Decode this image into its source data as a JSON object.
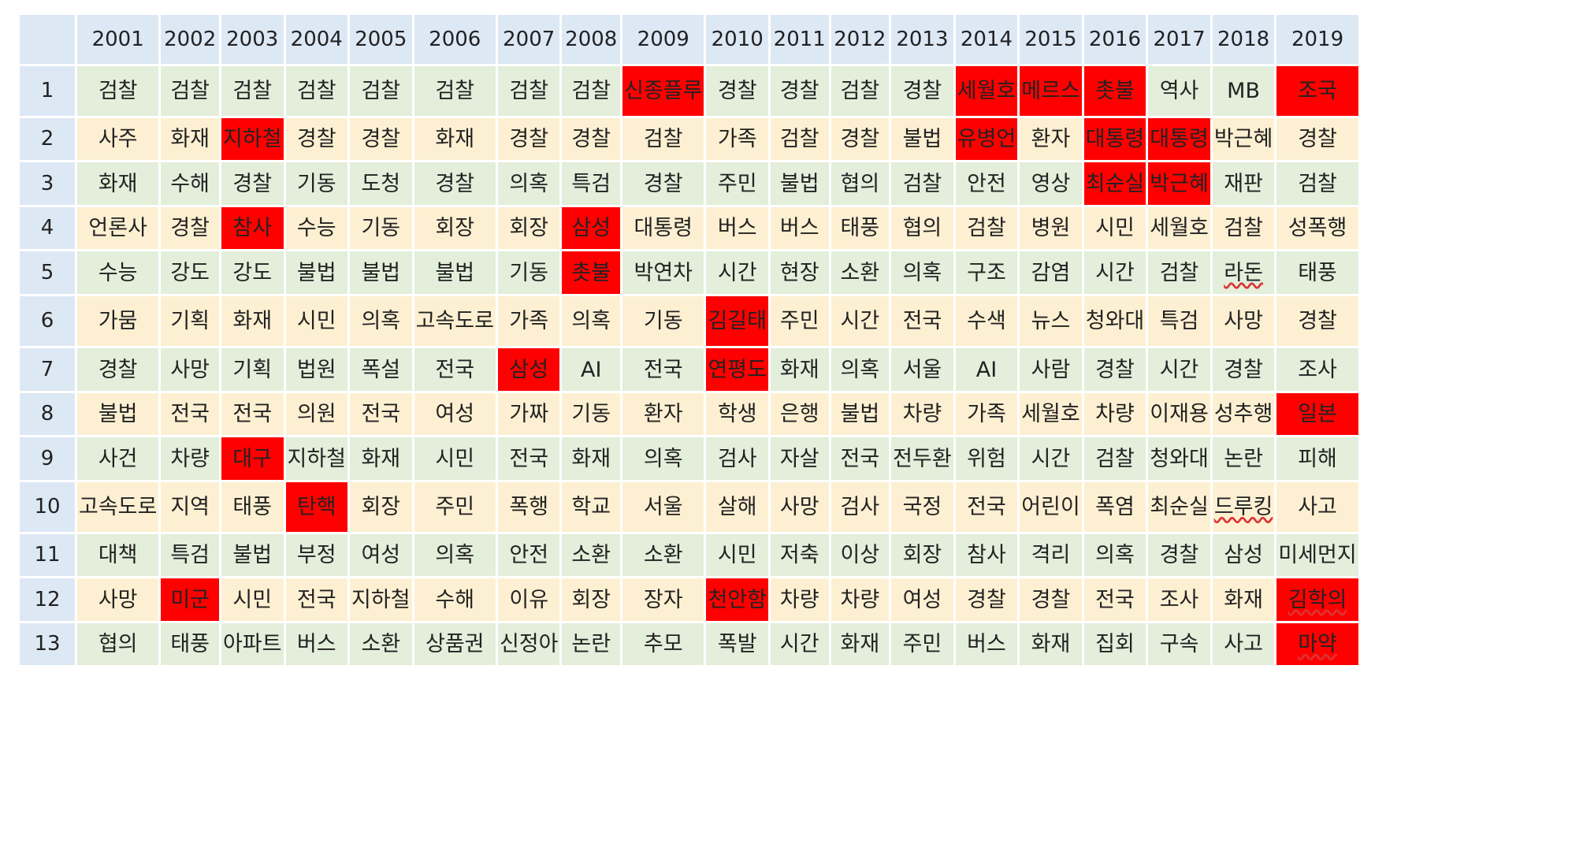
{
  "table": {
    "years": [
      "2001",
      "2002",
      "2003",
      "2004",
      "2005",
      "2006",
      "2007",
      "2008",
      "2009",
      "2010",
      "2011",
      "2012",
      "2013",
      "2014",
      "2015",
      "2016",
      "2017",
      "2018",
      "2019"
    ],
    "rows": [
      {
        "rank": "1",
        "cells": [
          {
            "text": "검찰"
          },
          {
            "text": "검찰"
          },
          {
            "text": "검찰"
          },
          {
            "text": "검찰"
          },
          {
            "text": "검찰"
          },
          {
            "text": "검찰"
          },
          {
            "text": "검찰"
          },
          {
            "text": "검찰"
          },
          {
            "text": "신종플루",
            "highlight": true
          },
          {
            "text": "경찰"
          },
          {
            "text": "경찰"
          },
          {
            "text": "검찰"
          },
          {
            "text": "경찰"
          },
          {
            "text": "세월호",
            "highlight": true
          },
          {
            "text": "메르스",
            "highlight": true
          },
          {
            "text": "촛불",
            "highlight": true
          },
          {
            "text": "역사"
          },
          {
            "text": "MB"
          },
          {
            "text": "조국",
            "highlight": true
          }
        ]
      },
      {
        "rank": "2",
        "cells": [
          {
            "text": "사주"
          },
          {
            "text": "화재"
          },
          {
            "text": "지하철",
            "highlight": true
          },
          {
            "text": "경찰"
          },
          {
            "text": "경찰"
          },
          {
            "text": "화재"
          },
          {
            "text": "경찰"
          },
          {
            "text": "경찰"
          },
          {
            "text": "검찰"
          },
          {
            "text": "가족"
          },
          {
            "text": "검찰"
          },
          {
            "text": "경찰"
          },
          {
            "text": "불법"
          },
          {
            "text": "유병언",
            "highlight": true
          },
          {
            "text": "환자"
          },
          {
            "text": "대통령",
            "highlight": true
          },
          {
            "text": "대통령",
            "highlight": true
          },
          {
            "text": "박근혜"
          },
          {
            "text": "경찰"
          }
        ]
      },
      {
        "rank": "3",
        "cells": [
          {
            "text": "화재"
          },
          {
            "text": "수해"
          },
          {
            "text": "경찰"
          },
          {
            "text": "기동"
          },
          {
            "text": "도청"
          },
          {
            "text": "경찰"
          },
          {
            "text": "의혹"
          },
          {
            "text": "특검"
          },
          {
            "text": "경찰"
          },
          {
            "text": "주민"
          },
          {
            "text": "불법"
          },
          {
            "text": "협의"
          },
          {
            "text": "검찰"
          },
          {
            "text": "안전"
          },
          {
            "text": "영상"
          },
          {
            "text": "최순실",
            "highlight": true
          },
          {
            "text": "박근혜",
            "highlight": true
          },
          {
            "text": "재판"
          },
          {
            "text": "검찰"
          }
        ]
      },
      {
        "rank": "4",
        "cells": [
          {
            "text": "언론사"
          },
          {
            "text": "경찰"
          },
          {
            "text": "참사",
            "highlight": true
          },
          {
            "text": "수능"
          },
          {
            "text": "기동"
          },
          {
            "text": "회장"
          },
          {
            "text": "회장"
          },
          {
            "text": "삼성",
            "highlight": true
          },
          {
            "text": "대통령"
          },
          {
            "text": "버스"
          },
          {
            "text": "버스"
          },
          {
            "text": "태풍"
          },
          {
            "text": "협의"
          },
          {
            "text": "검찰"
          },
          {
            "text": "병원"
          },
          {
            "text": "시민"
          },
          {
            "text": "세월호"
          },
          {
            "text": "검찰"
          },
          {
            "text": "성폭행"
          }
        ]
      },
      {
        "rank": "5",
        "cells": [
          {
            "text": "수능"
          },
          {
            "text": "강도"
          },
          {
            "text": "강도"
          },
          {
            "text": "불법"
          },
          {
            "text": "불법"
          },
          {
            "text": "불법"
          },
          {
            "text": "기동"
          },
          {
            "text": "촛불",
            "highlight": true
          },
          {
            "text": "박연차"
          },
          {
            "text": "시간"
          },
          {
            "text": "현장"
          },
          {
            "text": "소환"
          },
          {
            "text": "의혹"
          },
          {
            "text": "구조"
          },
          {
            "text": "감염"
          },
          {
            "text": "시간"
          },
          {
            "text": "검찰"
          },
          {
            "text": "라돈",
            "squiggle": true
          },
          {
            "text": "태풍"
          }
        ]
      },
      {
        "rank": "6",
        "cells": [
          {
            "text": "가뭄"
          },
          {
            "text": "기획"
          },
          {
            "text": "화재"
          },
          {
            "text": "시민"
          },
          {
            "text": "의혹"
          },
          {
            "text": "고속도로"
          },
          {
            "text": "가족"
          },
          {
            "text": "의혹"
          },
          {
            "text": "기동"
          },
          {
            "text": "김길태",
            "highlight": true
          },
          {
            "text": "주민"
          },
          {
            "text": "시간"
          },
          {
            "text": "전국"
          },
          {
            "text": "수색"
          },
          {
            "text": "뉴스"
          },
          {
            "text": "청와대"
          },
          {
            "text": "특검"
          },
          {
            "text": "사망"
          },
          {
            "text": "경찰"
          }
        ]
      },
      {
        "rank": "7",
        "cells": [
          {
            "text": "경찰"
          },
          {
            "text": "사망"
          },
          {
            "text": "기획"
          },
          {
            "text": "법원"
          },
          {
            "text": "폭설"
          },
          {
            "text": "전국"
          },
          {
            "text": "삼성",
            "highlight": true
          },
          {
            "text": "AI"
          },
          {
            "text": "전국"
          },
          {
            "text": "연평도",
            "highlight": true
          },
          {
            "text": "화재"
          },
          {
            "text": "의혹"
          },
          {
            "text": "서울"
          },
          {
            "text": "AI"
          },
          {
            "text": "사람"
          },
          {
            "text": "경찰"
          },
          {
            "text": "시간"
          },
          {
            "text": "경찰"
          },
          {
            "text": "조사"
          }
        ]
      },
      {
        "rank": "8",
        "cells": [
          {
            "text": "불법"
          },
          {
            "text": "전국"
          },
          {
            "text": "전국"
          },
          {
            "text": "의원"
          },
          {
            "text": "전국"
          },
          {
            "text": "여성"
          },
          {
            "text": "가짜"
          },
          {
            "text": "기동"
          },
          {
            "text": "환자"
          },
          {
            "text": "학생"
          },
          {
            "text": "은행"
          },
          {
            "text": "불법"
          },
          {
            "text": "차량"
          },
          {
            "text": "가족"
          },
          {
            "text": "세월호"
          },
          {
            "text": "차량"
          },
          {
            "text": "이재용"
          },
          {
            "text": "성추행"
          },
          {
            "text": "일본",
            "highlight": true
          }
        ]
      },
      {
        "rank": "9",
        "cells": [
          {
            "text": "사건"
          },
          {
            "text": "차량"
          },
          {
            "text": "대구",
            "highlight": true
          },
          {
            "text": "지하철"
          },
          {
            "text": "화재"
          },
          {
            "text": "시민"
          },
          {
            "text": "전국"
          },
          {
            "text": "화재"
          },
          {
            "text": "의혹"
          },
          {
            "text": "검사"
          },
          {
            "text": "자살"
          },
          {
            "text": "전국"
          },
          {
            "text": "전두환"
          },
          {
            "text": "위험"
          },
          {
            "text": "시간"
          },
          {
            "text": "검찰"
          },
          {
            "text": "청와대"
          },
          {
            "text": "논란"
          },
          {
            "text": "피해"
          }
        ]
      },
      {
        "rank": "10",
        "cells": [
          {
            "text": "고속도로"
          },
          {
            "text": "지역"
          },
          {
            "text": "태풍"
          },
          {
            "text": "탄핵",
            "highlight": true
          },
          {
            "text": "회장"
          },
          {
            "text": "주민"
          },
          {
            "text": "폭행"
          },
          {
            "text": "학교"
          },
          {
            "text": "서울"
          },
          {
            "text": "살해"
          },
          {
            "text": "사망"
          },
          {
            "text": "검사"
          },
          {
            "text": "국정"
          },
          {
            "text": "전국"
          },
          {
            "text": "어린이"
          },
          {
            "text": "폭염"
          },
          {
            "text": "최순실"
          },
          {
            "text": "드루킹",
            "squiggle": true
          },
          {
            "text": "사고"
          }
        ]
      },
      {
        "rank": "11",
        "cells": [
          {
            "text": "대책"
          },
          {
            "text": "특검"
          },
          {
            "text": "불법"
          },
          {
            "text": "부정"
          },
          {
            "text": "여성"
          },
          {
            "text": "의혹"
          },
          {
            "text": "안전"
          },
          {
            "text": "소환"
          },
          {
            "text": "소환"
          },
          {
            "text": "시민"
          },
          {
            "text": "저축"
          },
          {
            "text": "이상"
          },
          {
            "text": "회장"
          },
          {
            "text": "참사"
          },
          {
            "text": "격리"
          },
          {
            "text": "의혹"
          },
          {
            "text": "경찰"
          },
          {
            "text": "삼성"
          },
          {
            "text": "미세먼지"
          }
        ]
      },
      {
        "rank": "12",
        "cells": [
          {
            "text": "사망"
          },
          {
            "text": "미군",
            "highlight": true
          },
          {
            "text": "시민"
          },
          {
            "text": "전국"
          },
          {
            "text": "지하철"
          },
          {
            "text": "수해"
          },
          {
            "text": "이유"
          },
          {
            "text": "회장"
          },
          {
            "text": "장자"
          },
          {
            "text": "천안함",
            "highlight": true
          },
          {
            "text": "차량"
          },
          {
            "text": "차량"
          },
          {
            "text": "여성"
          },
          {
            "text": "경찰"
          },
          {
            "text": "경찰"
          },
          {
            "text": "전국"
          },
          {
            "text": "조사"
          },
          {
            "text": "화재"
          },
          {
            "text": "김학의",
            "highlight": true,
            "squiggle": true
          }
        ]
      },
      {
        "rank": "13",
        "cells": [
          {
            "text": "협의"
          },
          {
            "text": "태풍"
          },
          {
            "text": "아파트"
          },
          {
            "text": "버스"
          },
          {
            "text": "소환"
          },
          {
            "text": "상품권"
          },
          {
            "text": "신정아"
          },
          {
            "text": "논란"
          },
          {
            "text": "추모"
          },
          {
            "text": "폭발"
          },
          {
            "text": "시간"
          },
          {
            "text": "화재"
          },
          {
            "text": "주민"
          },
          {
            "text": "버스"
          },
          {
            "text": "화재"
          },
          {
            "text": "집회"
          },
          {
            "text": "구속"
          },
          {
            "text": "사고"
          },
          {
            "text": "마약",
            "highlight": true,
            "squiggle": true
          }
        ]
      }
    ]
  },
  "colors": {
    "header_bg": "#dde8f5",
    "odd_row_bg": "#e3eedb",
    "even_row_bg": "#fdf0d2",
    "highlight_bg": "#ff0000"
  }
}
